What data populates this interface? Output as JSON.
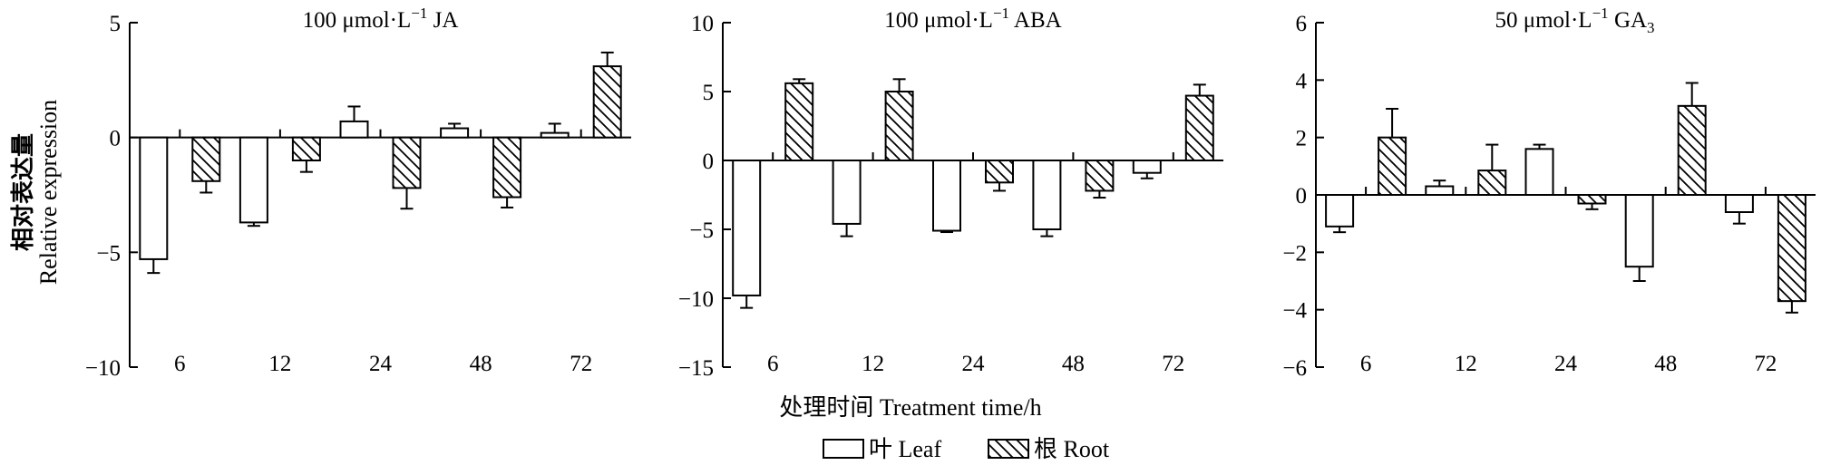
{
  "chart_data": {
    "type": "bar",
    "ylabel_cn": "相对表达量",
    "ylabel_en": "Relative expression",
    "xlabel": "处理时间 Treatment time/h",
    "legend": [
      {
        "name": "叶 Leaf",
        "style": "open"
      },
      {
        "name": "根 Root",
        "style": "hatched"
      }
    ],
    "panels": [
      {
        "title": "100 μmol·L⁻¹ JA",
        "title_parts": [
          "100 μmol·L",
          "−1",
          " JA"
        ],
        "categories": [
          "6",
          "12",
          "24",
          "48",
          "72"
        ],
        "ylim": [
          -10,
          5
        ],
        "yticks": [
          -10,
          -5,
          0,
          5
        ],
        "ytick_labels": [
          "−10",
          "−5",
          "0",
          "5"
        ],
        "series": [
          {
            "name": "叶 Leaf",
            "values": [
              -5.3,
              -3.7,
              0.7,
              0.4,
              0.2
            ],
            "errors": [
              0.6,
              0.15,
              0.65,
              0.2,
              0.4
            ]
          },
          {
            "name": "根 Root",
            "values": [
              -1.9,
              -1.0,
              -2.2,
              -2.6,
              3.1
            ],
            "errors": [
              0.5,
              0.5,
              0.9,
              0.45,
              0.6
            ]
          }
        ]
      },
      {
        "title": "100 μmol·L⁻¹ ABA",
        "title_parts": [
          "100 μmol·L",
          "−1",
          " ABA"
        ],
        "categories": [
          "6",
          "12",
          "24",
          "48",
          "72"
        ],
        "ylim": [
          -15,
          10
        ],
        "yticks": [
          -15,
          -10,
          -5,
          0,
          5,
          10
        ],
        "ytick_labels": [
          "−15",
          "−10",
          "−5",
          "0",
          "5",
          "10"
        ],
        "series": [
          {
            "name": "叶 Leaf",
            "values": [
              -9.8,
              -4.6,
              -5.1,
              -5.0,
              -0.9
            ],
            "errors": [
              0.9,
              0.9,
              0.1,
              0.5,
              0.4
            ]
          },
          {
            "name": "根 Root",
            "values": [
              5.6,
              5.0,
              -1.6,
              -2.2,
              4.7
            ],
            "errors": [
              0.3,
              0.9,
              0.6,
              0.5,
              0.8
            ]
          }
        ]
      },
      {
        "title": "50 μmol·L⁻¹ GA₃",
        "title_parts": [
          "50 μmol·L",
          "−1",
          " GA",
          "3"
        ],
        "categories": [
          "6",
          "12",
          "24",
          "48",
          "72"
        ],
        "ylim": [
          -6,
          6
        ],
        "yticks": [
          -6,
          -4,
          -2,
          0,
          2,
          4,
          6
        ],
        "ytick_labels": [
          "−6",
          "−4",
          "−2",
          "0",
          "2",
          "4",
          "6"
        ],
        "series": [
          {
            "name": "叶 Leaf",
            "values": [
              -1.1,
              0.3,
              1.6,
              -2.5,
              -0.6
            ],
            "errors": [
              0.2,
              0.2,
              0.15,
              0.5,
              0.4
            ]
          },
          {
            "name": "根 Root",
            "values": [
              2.0,
              0.85,
              -0.3,
              3.1,
              -3.7
            ],
            "errors": [
              1.0,
              0.9,
              0.2,
              0.8,
              0.4
            ]
          }
        ]
      }
    ]
  }
}
